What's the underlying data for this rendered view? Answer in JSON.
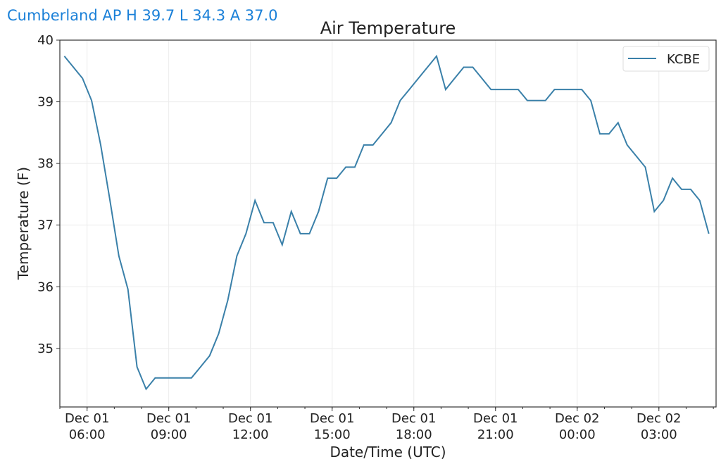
{
  "header": {
    "station_summary": "Cumberland AP H 39.7 L 34.3 A 37.0"
  },
  "chart_data": {
    "type": "line",
    "title": "Air Temperature",
    "xlabel": "Date/Time (UTC)",
    "ylabel": "Temperature (F)",
    "x_units": "minutes since Dec 01 00:00 UTC",
    "xlim": [
      300,
      1746
    ],
    "ylim": [
      34.05,
      40.0
    ],
    "grid": true,
    "legend_position": "top-right",
    "x_ticks": [
      {
        "value": 360,
        "line1": "Dec 01",
        "line2": "06:00"
      },
      {
        "value": 540,
        "line1": "Dec 01",
        "line2": "09:00"
      },
      {
        "value": 720,
        "line1": "Dec 01",
        "line2": "12:00"
      },
      {
        "value": 900,
        "line1": "Dec 01",
        "line2": "15:00"
      },
      {
        "value": 1080,
        "line1": "Dec 01",
        "line2": "18:00"
      },
      {
        "value": 1260,
        "line1": "Dec 01",
        "line2": "21:00"
      },
      {
        "value": 1440,
        "line1": "Dec 02",
        "line2": "00:00"
      },
      {
        "value": 1620,
        "line1": "Dec 02",
        "line2": "03:00"
      }
    ],
    "y_ticks": [
      "35",
      "36",
      "37",
      "38",
      "39",
      "40"
    ],
    "series": [
      {
        "name": "KCBE",
        "color": "#3a80a9",
        "x": [
          310,
          350,
          370,
          390,
          410,
          430,
          450,
          470,
          490,
          510,
          530,
          550,
          570,
          590,
          610,
          630,
          650,
          670,
          690,
          710,
          730,
          750,
          770,
          790,
          810,
          830,
          850,
          870,
          890,
          910,
          930,
          950,
          970,
          990,
          1010,
          1030,
          1050,
          1070,
          1090,
          1110,
          1130,
          1150,
          1170,
          1190,
          1210,
          1230,
          1250,
          1270,
          1290,
          1310,
          1330,
          1350,
          1370,
          1390,
          1410,
          1430,
          1450,
          1470,
          1490,
          1510,
          1530,
          1550,
          1570,
          1590,
          1610,
          1630,
          1650,
          1670,
          1690,
          1710,
          1730
        ],
        "values": [
          39.74,
          39.38,
          39.02,
          38.3,
          37.42,
          36.5,
          35.96,
          34.7,
          34.34,
          34.52,
          34.52,
          34.52,
          34.52,
          34.52,
          34.7,
          34.88,
          35.24,
          35.78,
          36.5,
          36.86,
          37.4,
          37.04,
          37.04,
          36.68,
          37.22,
          36.86,
          36.86,
          37.22,
          37.76,
          37.76,
          37.94,
          37.94,
          38.3,
          38.3,
          38.48,
          38.66,
          39.02,
          39.2,
          39.38,
          39.56,
          39.74,
          39.2,
          39.38,
          39.56,
          39.56,
          39.38,
          39.2,
          39.2,
          39.2,
          39.2,
          39.02,
          39.02,
          39.02,
          39.2,
          39.2,
          39.2,
          39.2,
          39.02,
          38.48,
          38.48,
          38.66,
          38.3,
          38.12,
          37.94,
          37.22,
          37.4,
          37.76,
          37.58,
          37.58,
          37.4,
          36.86
        ]
      }
    ]
  }
}
